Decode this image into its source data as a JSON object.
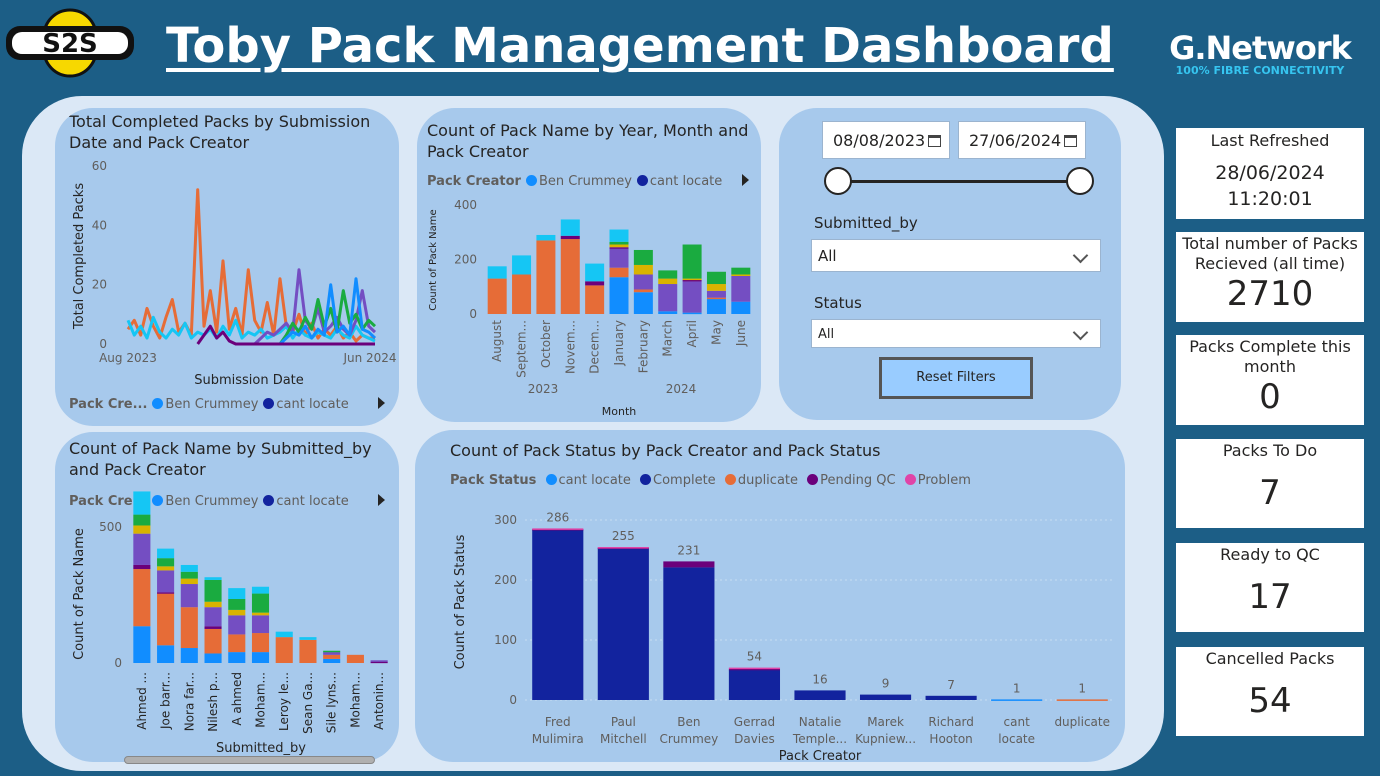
{
  "header": {
    "title": "Toby Pack Management Dashboard",
    "logo_text": "S2S",
    "brand_name": "G.Network",
    "brand_tagline": "100% FIBRE CONNECTIVITY"
  },
  "colors": {
    "ben_crummey": "#118dff",
    "cant_locate": "#12239e",
    "complete": "#12239e",
    "duplicate": "#e66c37",
    "pending_qc": "#6b007b",
    "problem": "#e044a7",
    "purple": "#744ec2",
    "yellow": "#d9b300",
    "green": "#1aab40",
    "cyan": "#15c6f4"
  },
  "line_chart": {
    "title": "Total Completed Packs by Submission Date and Pack Creator",
    "legend_label": "Pack Cre...",
    "legend_items": [
      "Ben Crummey",
      "cant locate"
    ],
    "chart_data": {
      "type": "line",
      "title": "Total Completed Packs by Submission Date and Pack Creator",
      "xlabel": "Submission Date",
      "ylabel": "Total Completed Packs",
      "y_ticks": [
        "60",
        "40",
        "20",
        "0"
      ],
      "x_ticks": [
        "Aug 2023",
        "Jun 2024"
      ],
      "ylim": [
        0,
        60
      ],
      "series": [
        {
          "name": "orange",
          "color": "#e66c37",
          "values": [
            5,
            8,
            3,
            12,
            6,
            2,
            9,
            15,
            4,
            7,
            3,
            52,
            6,
            18,
            4,
            28,
            5,
            12,
            3,
            25,
            8,
            4,
            14,
            3,
            22,
            6,
            4,
            10,
            3,
            7,
            2,
            5,
            3,
            6,
            2,
            4,
            1,
            3,
            2,
            2
          ]
        },
        {
          "name": "cyan",
          "color": "#15c6f4",
          "values": [
            8,
            3,
            6,
            2,
            9,
            4,
            2,
            5,
            3,
            7,
            2,
            4,
            3,
            5,
            2,
            6,
            3,
            8,
            2,
            4,
            3,
            5,
            2,
            3,
            4,
            6,
            2,
            5,
            3,
            2,
            4,
            3,
            2,
            5,
            3,
            2,
            6,
            3,
            2,
            1
          ]
        },
        {
          "name": "purple",
          "color": "#744ec2",
          "values": [
            0,
            0,
            0,
            0,
            0,
            0,
            0,
            0,
            0,
            0,
            0,
            0,
            0,
            0,
            0,
            0,
            0,
            0,
            0,
            0,
            0,
            2,
            4,
            3,
            5,
            7,
            4,
            25,
            8,
            5,
            12,
            4,
            6,
            9,
            5,
            3,
            8,
            18,
            6,
            4
          ]
        },
        {
          "name": "green",
          "color": "#1aab40",
          "values": [
            0,
            0,
            0,
            0,
            0,
            0,
            0,
            0,
            0,
            0,
            0,
            0,
            0,
            0,
            0,
            0,
            0,
            0,
            0,
            0,
            0,
            0,
            0,
            0,
            0,
            3,
            7,
            4,
            9,
            5,
            15,
            6,
            12,
            4,
            18,
            7,
            10,
            5,
            8,
            6
          ]
        },
        {
          "name": "blue",
          "color": "#118dff",
          "values": [
            0,
            0,
            0,
            0,
            0,
            0,
            0,
            0,
            0,
            0,
            0,
            0,
            0,
            0,
            0,
            0,
            0,
            0,
            0,
            0,
            0,
            0,
            0,
            0,
            0,
            2,
            4,
            3,
            6,
            2,
            5,
            3,
            20,
            4,
            6,
            3,
            22,
            5,
            4,
            2
          ]
        },
        {
          "name": "Pending QC",
          "color": "#6b007b",
          "values": [
            0,
            0,
            0,
            0,
            0,
            0,
            0,
            0,
            0,
            0,
            0,
            0,
            3,
            6,
            2,
            4,
            1,
            0,
            0,
            0,
            0,
            0,
            0,
            0,
            0,
            0,
            0,
            0,
            0,
            0,
            0,
            0,
            0,
            0,
            0,
            0,
            0,
            0,
            0,
            0
          ]
        }
      ]
    }
  },
  "month_chart": {
    "title": "Count of Pack Name by Year, Month and Pack Creator",
    "legend_label": "Pack Creator",
    "legend_items": [
      "Ben Crummey",
      "cant locate"
    ],
    "chart_data": {
      "type": "bar",
      "stacked": true,
      "title": "Count of Pack Name by Year, Month and Pack Creator",
      "xlabel": "Month",
      "ylabel": "Count of Pack Name",
      "y_ticks": [
        "400",
        "200",
        "0"
      ],
      "ylim": [
        0,
        400
      ],
      "categories": [
        "August",
        "Septem...",
        "October",
        "Novem...",
        "Decem...",
        "January",
        "February",
        "March",
        "April",
        "May",
        "June"
      ],
      "year_labels": [
        "2023",
        "2024"
      ],
      "series": [
        {
          "name": "blue",
          "color": "#118dff",
          "values": [
            0,
            0,
            0,
            0,
            0,
            135,
            80,
            10,
            5,
            55,
            45
          ]
        },
        {
          "name": "orange",
          "color": "#e66c37",
          "values": [
            130,
            145,
            270,
            275,
            105,
            35,
            10,
            0,
            0,
            5,
            0
          ]
        },
        {
          "name": "purple",
          "color": "#744ec2",
          "values": [
            0,
            0,
            0,
            0,
            0,
            70,
            55,
            100,
            115,
            25,
            95
          ]
        },
        {
          "name": "dark",
          "color": "#6b007b",
          "values": [
            0,
            0,
            0,
            12,
            15,
            5,
            0,
            0,
            5,
            0,
            0
          ]
        },
        {
          "name": "yellow",
          "color": "#d9b300",
          "values": [
            0,
            0,
            0,
            0,
            0,
            10,
            35,
            20,
            5,
            25,
            5
          ]
        },
        {
          "name": "green",
          "color": "#1aab40",
          "values": [
            0,
            0,
            0,
            0,
            0,
            10,
            55,
            30,
            125,
            45,
            25
          ]
        },
        {
          "name": "cyan",
          "color": "#15c6f4",
          "values": [
            45,
            70,
            20,
            60,
            65,
            45,
            0,
            0,
            0,
            0,
            0
          ]
        }
      ]
    }
  },
  "filters": {
    "date_from": "08/08/2023",
    "date_to": "27/06/2024",
    "submitted_by_label": "Submitted_by",
    "submitted_by_value": "All",
    "status_label": "Status",
    "status_value": "All",
    "reset_label": "Reset Filters"
  },
  "submitter_chart": {
    "title": "Count of Pack Name by Submitted_by and Pack Creator",
    "legend_label": "Pack Cre...",
    "legend_items": [
      "Ben Crummey",
      "cant locate"
    ],
    "chart_data": {
      "type": "bar",
      "stacked": true,
      "title": "Count of Pack Name by Submitted_by and Pack Creator",
      "xlabel": "Submitted_by",
      "ylabel": "Count of Pack Name",
      "y_ticks": [
        "500",
        "0"
      ],
      "ylim": [
        0,
        650
      ],
      "categories": [
        "Ahmed ...",
        "Joe barr...",
        "Nora far...",
        "Nilesh p...",
        "A ahmed",
        "Moham...",
        "Leroy le...",
        "Sean Ga...",
        "Sile lyns...",
        "Moham...",
        "Antonin..."
      ],
      "series": [
        {
          "name": "blue",
          "color": "#118dff",
          "values": [
            135,
            65,
            55,
            35,
            40,
            40,
            0,
            0,
            15,
            0,
            0
          ]
        },
        {
          "name": "orange",
          "color": "#e66c37",
          "values": [
            210,
            190,
            150,
            90,
            65,
            70,
            95,
            85,
            15,
            30,
            0
          ]
        },
        {
          "name": "dark",
          "color": "#6b007b",
          "values": [
            15,
            5,
            0,
            10,
            0,
            0,
            0,
            0,
            0,
            0,
            5
          ]
        },
        {
          "name": "purple",
          "color": "#744ec2",
          "values": [
            115,
            80,
            85,
            70,
            70,
            65,
            0,
            0,
            10,
            0,
            5
          ]
        },
        {
          "name": "yellow",
          "color": "#d9b300",
          "values": [
            30,
            15,
            20,
            20,
            20,
            10,
            0,
            0,
            0,
            0,
            0
          ]
        },
        {
          "name": "green",
          "color": "#1aab40",
          "values": [
            40,
            30,
            25,
            80,
            40,
            70,
            0,
            0,
            5,
            0,
            0
          ]
        },
        {
          "name": "cyan",
          "color": "#15c6f4",
          "values": [
            85,
            35,
            25,
            10,
            40,
            25,
            20,
            10,
            0,
            0,
            0
          ]
        }
      ]
    }
  },
  "status_chart": {
    "title": "Count of Pack Status by Pack Creator and Pack Status",
    "legend_label": "Pack Status",
    "legend_items": [
      {
        "label": "cant locate",
        "color": "#118dff"
      },
      {
        "label": "Complete",
        "color": "#12239e"
      },
      {
        "label": "duplicate",
        "color": "#e66c37"
      },
      {
        "label": "Pending QC",
        "color": "#6b007b"
      },
      {
        "label": "Problem",
        "color": "#e044a7"
      }
    ],
    "chart_data": {
      "type": "bar",
      "stacked": true,
      "title": "Count of Pack Status by Pack Creator and Pack Status",
      "xlabel": "Pack Creator",
      "ylabel": "Count of Pack Status",
      "y_ticks": [
        "300",
        "200",
        "100",
        "0"
      ],
      "ylim": [
        0,
        300
      ],
      "categories": [
        [
          "Fred",
          "Mulimira"
        ],
        [
          "Paul",
          "Mitchell"
        ],
        [
          "Ben",
          "Crummey"
        ],
        [
          "Gerrad",
          "Davies"
        ],
        [
          "Natalie",
          "Temple..."
        ],
        [
          "Marek",
          "Kupniew..."
        ],
        [
          "Richard",
          "Hooton"
        ],
        [
          "cant",
          "locate"
        ],
        [
          "duplicate",
          ""
        ]
      ],
      "totals": [
        "286",
        "255",
        "231",
        "54",
        "16",
        "9",
        "7",
        "1",
        "1"
      ],
      "series": [
        {
          "name": "Complete",
          "color": "#12239e",
          "values": [
            284,
            253,
            221,
            50,
            16,
            9,
            7,
            0,
            0
          ]
        },
        {
          "name": "cant locate",
          "color": "#118dff",
          "values": [
            0,
            0,
            0,
            0,
            0,
            0,
            0,
            1,
            0
          ]
        },
        {
          "name": "duplicate",
          "color": "#e66c37",
          "values": [
            0,
            0,
            0,
            0,
            0,
            0,
            0,
            0,
            1
          ]
        },
        {
          "name": "Pending QC",
          "color": "#6b007b",
          "values": [
            1,
            1,
            10,
            2,
            0,
            0,
            0,
            0,
            0
          ]
        },
        {
          "name": "Problem",
          "color": "#e044a7",
          "values": [
            1,
            1,
            0,
            2,
            0,
            0,
            0,
            0,
            0
          ]
        }
      ]
    }
  },
  "kpis": [
    {
      "label": "Last Refreshed",
      "value": "28/06/2024 11:20:01"
    },
    {
      "label": "Total number of Packs Recieved (all time)",
      "value": "2710"
    },
    {
      "label": "Packs Complete this month",
      "value": "0"
    },
    {
      "label": "Packs To Do",
      "value": "7"
    },
    {
      "label": "Ready to QC",
      "value": "17"
    },
    {
      "label": "Cancelled Packs",
      "value": "54"
    }
  ]
}
